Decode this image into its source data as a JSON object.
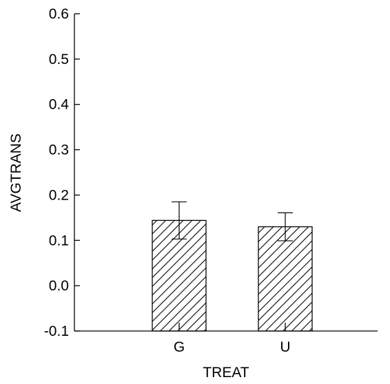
{
  "chart_data": {
    "type": "bar",
    "xlabel": "TREAT",
    "ylabel": "AVGTRANS",
    "categories": [
      "G",
      "U"
    ],
    "values": [
      0.144,
      0.13
    ],
    "error_bars": [
      {
        "low": 0.103,
        "high": 0.185
      },
      {
        "low": 0.099,
        "high": 0.161
      }
    ],
    "ylim": [
      -0.1,
      0.6
    ],
    "yticks": [
      "-0.1",
      "0.0",
      "0.1",
      "0.2",
      "0.3",
      "0.4",
      "0.5",
      "0.6"
    ],
    "bar_fill": "diagonal-hatch",
    "grid": false,
    "legend": "none"
  },
  "colors": {
    "axis": "#000000",
    "hatch": "#000000",
    "background": "#ffffff"
  }
}
